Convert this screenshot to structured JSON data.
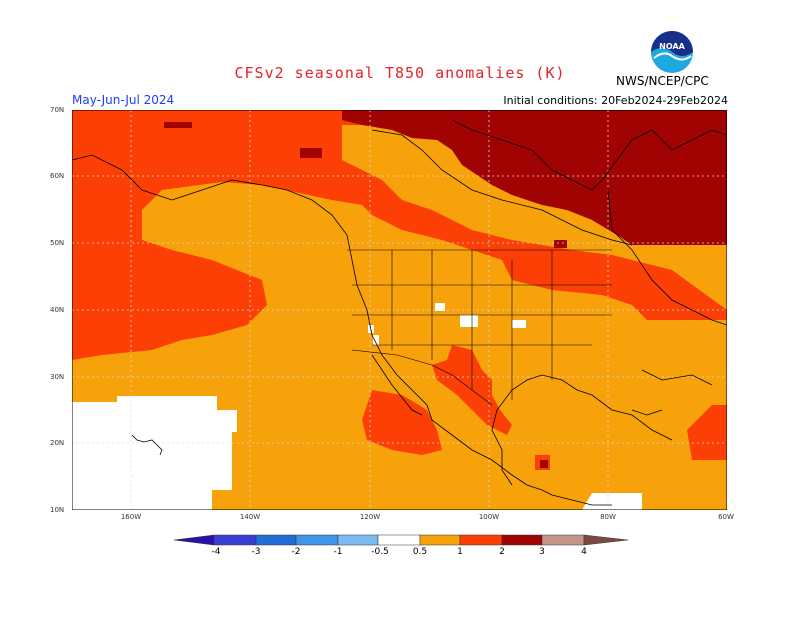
{
  "header": {
    "title": "CFSv2 seasonal T850 anomalies (K)",
    "period": "May-Jun-Jul 2024",
    "initial_conditions": "Initial conditions: 20Feb2024-29Feb2024",
    "agency": "NWS/NCEP/CPC",
    "logo_text": "NOAA"
  },
  "map": {
    "lat_labels": [
      "70N",
      "60N",
      "50N",
      "40N",
      "30N",
      "20N",
      "10N"
    ],
    "lon_labels": [
      "160W",
      "140W",
      "120W",
      "100W",
      "80W",
      "60W"
    ],
    "colors": {
      "zero": "#ffffff",
      "p05": "#f7a20b",
      "p1": "#fc4005",
      "p2": "#a10303",
      "p3": "#c4968a",
      "land_line": "#000000",
      "grid": "#cccccc"
    }
  },
  "colorbar": {
    "labels": [
      "-4",
      "-3",
      "-2",
      "-1",
      "-0.5",
      "0.5",
      "1",
      "2",
      "3",
      "4"
    ],
    "colors": [
      "#2c0fa8",
      "#3a3fd4",
      "#1f6fd6",
      "#3e95ea",
      "#7cbaf2",
      "#ffffff",
      "#f7a20b",
      "#fc4005",
      "#a10303",
      "#c4968a",
      "#7b4a40"
    ]
  }
}
